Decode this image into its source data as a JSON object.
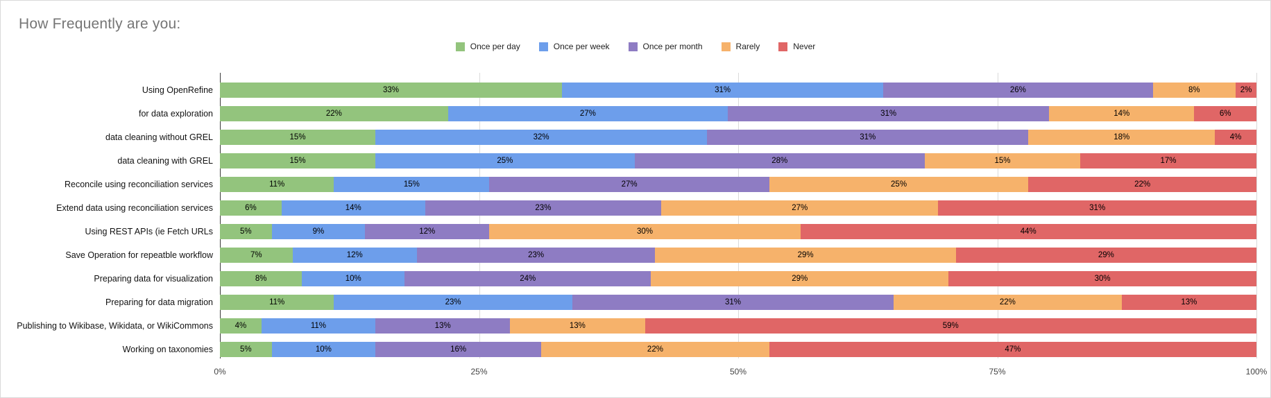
{
  "title": "How Frequently are you:",
  "chart_data": {
    "type": "bar",
    "orientation": "horizontal",
    "stacked": true,
    "unit": "%",
    "title": "How Frequently are you:",
    "legend_position": "top",
    "grid": true,
    "categories": [
      "Using OpenRefine",
      "for data exploration",
      "data cleaning without GREL",
      "data cleaning with GREL",
      "Reconcile using reconciliation services",
      "Extend data using reconciliation services",
      "Using REST APIs (ie Fetch URLs",
      "Save Operation for repeatble workflow",
      "Preparing data for visualization",
      "Preparing for data migration",
      "Publishing to Wikibase, Wikidata, or WikiCommons",
      "Working on taxonomies"
    ],
    "series": [
      {
        "name": "Once per day",
        "color": "#93c47d",
        "values": [
          33,
          22,
          15,
          15,
          11,
          6,
          5,
          7,
          8,
          11,
          4,
          5
        ]
      },
      {
        "name": "Once per week",
        "color": "#6d9eeb",
        "values": [
          31,
          27,
          32,
          25,
          15,
          14,
          9,
          12,
          10,
          23,
          11,
          10
        ]
      },
      {
        "name": "Once per month",
        "color": "#8e7cc3",
        "values": [
          26,
          31,
          31,
          28,
          27,
          23,
          12,
          23,
          24,
          31,
          13,
          16
        ]
      },
      {
        "name": "Rarely",
        "color": "#f6b26b",
        "values": [
          8,
          14,
          18,
          15,
          25,
          27,
          30,
          29,
          29,
          22,
          13,
          22
        ]
      },
      {
        "name": "Never",
        "color": "#e06666",
        "values": [
          2,
          6,
          4,
          17,
          22,
          31,
          44,
          29,
          30,
          13,
          59,
          47
        ]
      }
    ],
    "value_label_format": "{v}%",
    "x_axis": {
      "range": [
        0,
        100
      ],
      "tick_positions": [
        0,
        25,
        50,
        75,
        100
      ],
      "ticks": [
        "0%",
        "25%",
        "50%",
        "75%",
        "100%"
      ]
    }
  },
  "colors": {
    "title_text": "#757575",
    "axis_line": "#3c3c3c",
    "gridline": "#dadada",
    "bar_label_text": "#000000"
  }
}
